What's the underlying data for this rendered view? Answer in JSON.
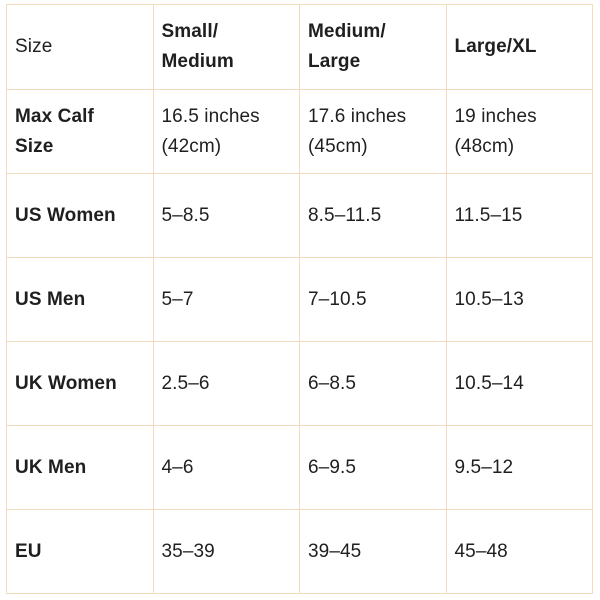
{
  "table": {
    "header": [
      "Size",
      "Small/\nMedium",
      "Medium/\nLarge",
      "Large/XL"
    ],
    "rows": [
      {
        "label": "Max Calf\nSize",
        "values": [
          "16.5 inches\n(42cm)",
          "17.6 inches\n(45cm)",
          "19 inches\n(48cm)"
        ]
      },
      {
        "label": "US Women",
        "values": [
          "5–8.5",
          "8.5–11.5",
          "11.5–15"
        ]
      },
      {
        "label": "US Men",
        "values": [
          "5–7",
          "7–10.5",
          "10.5–13"
        ]
      },
      {
        "label": "UK Women",
        "values": [
          "2.5–6",
          "6–8.5",
          "10.5–14"
        ]
      },
      {
        "label": "UK Men",
        "values": [
          "4–6",
          "6–9.5",
          "9.5–12"
        ]
      },
      {
        "label": "EU",
        "values": [
          "35–39",
          "39–45",
          "45–48"
        ]
      }
    ]
  },
  "colors": {
    "border": "#f3dcbd",
    "text": "#1f1f1f",
    "background": "#ffffff"
  }
}
